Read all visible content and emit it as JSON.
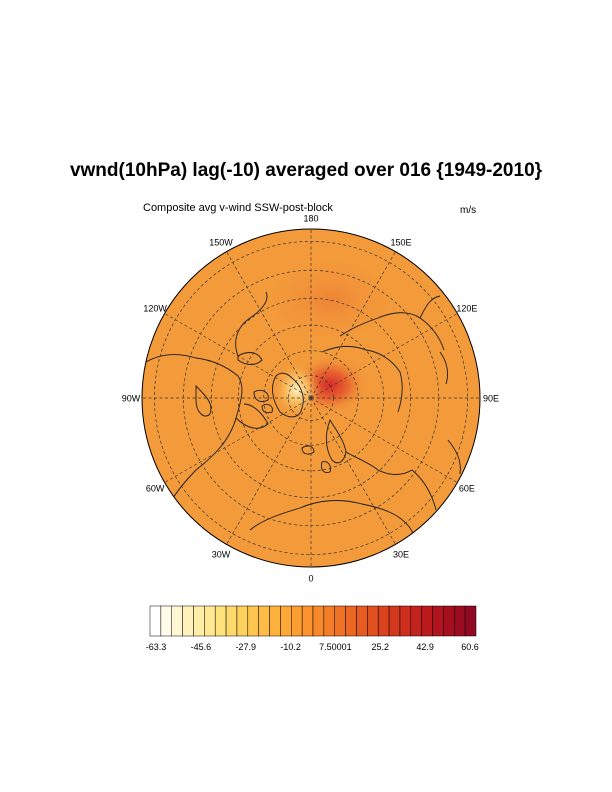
{
  "map": {
    "title": "vwnd(10hPa) lag(-10) averaged over 016 {1949-2010}",
    "subtitle_left": "Composite avg v-wind SSW-post-block",
    "units": "m/s",
    "projection": "north-polar-stereographic",
    "longitude_labels": [
      {
        "lon": 180,
        "text": "180"
      },
      {
        "lon": 150,
        "text": "150E"
      },
      {
        "lon": 120,
        "text": "120E"
      },
      {
        "lon": 90,
        "text": "90E"
      },
      {
        "lon": 60,
        "text": "60E"
      },
      {
        "lon": 30,
        "text": "30E"
      },
      {
        "lon": 0,
        "text": "0"
      },
      {
        "lon": -30,
        "text": "30W"
      },
      {
        "lon": -60,
        "text": "60W"
      },
      {
        "lon": -90,
        "text": "90W"
      },
      {
        "lon": -120,
        "text": "120W"
      },
      {
        "lon": -150,
        "text": "150W"
      }
    ],
    "field_colors": {
      "background": "#f39a3a",
      "positive_max": "#d4232a",
      "negative_min": "#fff3c2"
    },
    "colorbar": {
      "labels": [
        "-63.3",
        "-45.6",
        "-27.9",
        "-10.2",
        "7.50001",
        "25.2",
        "42.9",
        "60.6"
      ],
      "colors": [
        "#ffffff",
        "#fffbe9",
        "#fff7d3",
        "#fff2bd",
        "#ffeea7",
        "#ffe891",
        "#fee27c",
        "#fed96b",
        "#fed05d",
        "#fec650",
        "#febc46",
        "#feb23d",
        "#fea837",
        "#fd9e32",
        "#fb942e",
        "#f8892a",
        "#f47e27",
        "#f07325",
        "#eb6823",
        "#e65c22",
        "#e05020",
        "#d9441f",
        "#d3381e",
        "#cc2d1d",
        "#c4231d",
        "#bb1b1d",
        "#b1141e",
        "#a60f1f",
        "#9b0c21",
        "#8f0a22"
      ]
    }
  }
}
